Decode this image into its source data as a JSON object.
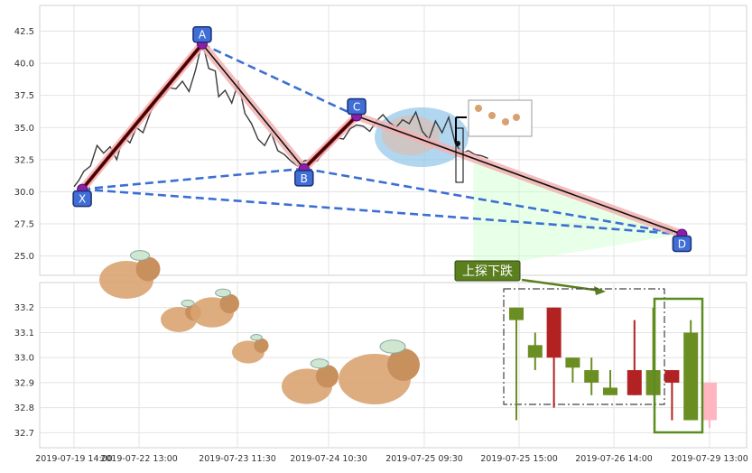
{
  "chart_data": [
    {
      "type": "line",
      "panel": "top",
      "title": "",
      "xlabel": "",
      "ylabel": "",
      "ylim": [
        23.5,
        44.5
      ],
      "yticks": [
        "25.0",
        "27.5",
        "30.0",
        "32.5",
        "35.0",
        "37.5",
        "40.0",
        "42.5"
      ],
      "grid": true,
      "series": [
        {
          "color": "#3a3a3a",
          "x_index": [
            0,
            3,
            6,
            10,
            14,
            18,
            22,
            26,
            30,
            34,
            38,
            42,
            46,
            50,
            54,
            58,
            62,
            66,
            70,
            74,
            78,
            82,
            86,
            88,
            92,
            96,
            100,
            104,
            108,
            112,
            116,
            120,
            124,
            128,
            132,
            136,
            140,
            144,
            148,
            152,
            156,
            160,
            164,
            168,
            172,
            176,
            180,
            184,
            188,
            192,
            196,
            200,
            204,
            208,
            212,
            216,
            220,
            224,
            228,
            232,
            236,
            240,
            244,
            248,
            252
          ],
          "y": [
            30.4,
            30.9,
            31.6,
            32.0,
            33.6,
            33.0,
            33.5,
            32.5,
            34.3,
            33.8,
            35.0,
            34.6,
            36.0,
            37.2,
            37.4,
            38.1,
            38.0,
            38.6,
            37.8,
            39.5,
            41.7,
            39.6,
            39.4,
            37.4,
            37.9,
            36.9,
            38.5,
            36.1,
            35.3,
            34.1,
            33.6,
            34.6,
            33.2,
            32.9,
            32.4,
            32.0,
            32.4,
            32.5,
            32.4,
            33.1,
            33.6,
            34.2,
            34.1,
            34.9,
            35.2,
            35.1,
            34.7,
            35.5,
            36.0,
            35.4,
            35.0,
            35.6,
            35.3,
            36.2,
            34.7,
            34.1,
            35.5,
            34.6,
            35.8,
            33.8,
            33.0,
            33.2,
            32.9,
            32.8,
            32.6
          ]
        }
      ],
      "xabcd_pattern": {
        "labels": [
          "X",
          "A",
          "B",
          "C",
          "D"
        ],
        "points": [
          [
            5,
            30.2
          ],
          [
            78,
            41.5
          ],
          [
            140,
            31.8
          ],
          [
            172,
            35.9
          ],
          [
            370,
            26.7
          ]
        ]
      },
      "annotations": []
    },
    {
      "type": "candlestick",
      "panel": "bottom",
      "ylim": [
        32.64,
        33.3
      ],
      "yticks": [
        "32.7",
        "32.8",
        "32.9",
        "33.0",
        "33.1",
        "33.2"
      ],
      "x_tick_labels": [
        "2019-07-19 14:00",
        "2019-07-22 13:00",
        "2019-07-23 11:30",
        "2019-07-24 10:30",
        "2019-07-25 09:30",
        "2019-07-25 15:00",
        "2019-07-26 14:00",
        "2019-07-29 13:00"
      ],
      "annotation_text": "上探下跌",
      "candles": [
        {
          "open": 33.15,
          "close": 33.2,
          "high": 33.2,
          "low": 32.75,
          "color": "#6b8e23"
        },
        {
          "open": 33.0,
          "close": 33.05,
          "high": 33.1,
          "low": 32.95,
          "color": "#6b8e23"
        },
        {
          "open": 33.2,
          "close": 33.0,
          "high": 33.2,
          "low": 32.8,
          "color": "#b22222"
        },
        {
          "open": 33.0,
          "close": 32.96,
          "high": 33.0,
          "low": 32.9,
          "color": "#6b8e23"
        },
        {
          "open": 32.9,
          "close": 32.95,
          "high": 33.0,
          "low": 32.85,
          "color": "#6b8e23"
        },
        {
          "open": 32.85,
          "close": 32.88,
          "high": 32.95,
          "low": 32.85,
          "color": "#6b8e23"
        },
        {
          "open": 32.95,
          "close": 32.85,
          "high": 33.15,
          "low": 32.85,
          "color": "#b22222"
        },
        {
          "open": 32.95,
          "close": 32.85,
          "high": 33.2,
          "low": 32.85,
          "color": "#6b8e23"
        },
        {
          "open": 32.95,
          "close": 32.9,
          "high": 32.95,
          "low": 32.75,
          "color": "#b22222"
        },
        {
          "open": 33.1,
          "close": 32.75,
          "high": 33.15,
          "low": 32.75,
          "color": "#6b8e23"
        },
        {
          "open": 32.9,
          "close": 32.75,
          "high": 32.9,
          "low": 32.72,
          "color": "#ffb6c1"
        }
      ]
    }
  ]
}
